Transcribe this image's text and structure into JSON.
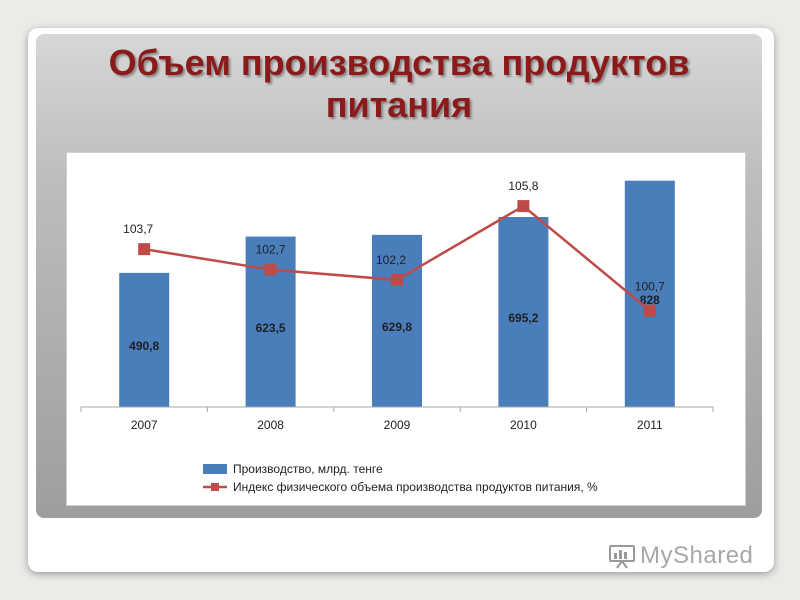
{
  "slide": {
    "title_line1": "Объем производства продуктов",
    "title_line2": "питания"
  },
  "watermark": {
    "text": "MyShared",
    "icon": "myshared-logo-icon"
  },
  "chart_data": {
    "type": "bar+line",
    "categories": [
      "2007",
      "2008",
      "2009",
      "2010",
      "2011"
    ],
    "series": [
      {
        "name": "Производство, млрд. тенге",
        "type": "bar",
        "color": "#4a7ebb",
        "values": [
          490.8,
          623.5,
          629.8,
          695.2,
          828
        ],
        "labels": [
          "490,8",
          "623,5",
          "629,8",
          "695,2",
          "828"
        ]
      },
      {
        "name": "Индекс физического объема производства продуктов питания, %",
        "type": "line",
        "color": "#be4b48",
        "values": [
          103.7,
          102.7,
          102.2,
          105.8,
          100.7
        ],
        "labels": [
          "103,7",
          "102,7",
          "102,2",
          "105,8",
          "100,7"
        ]
      }
    ],
    "bar_axis_range": [
      0,
      900
    ],
    "line_axis_range": [
      96,
      108
    ],
    "legend_position": "bottom",
    "grid": false
  }
}
